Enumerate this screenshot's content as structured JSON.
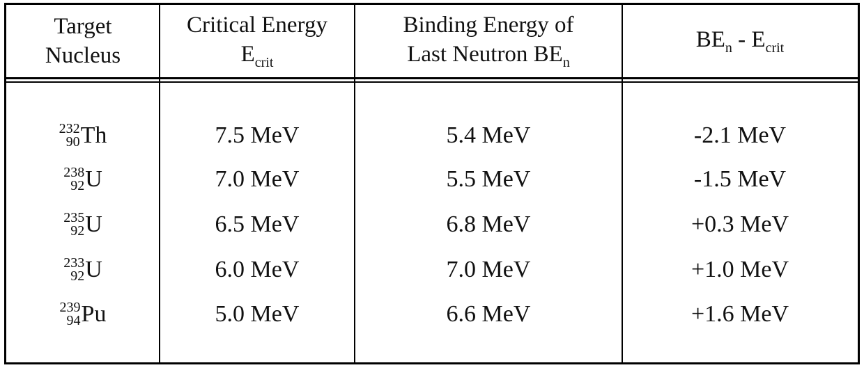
{
  "table": {
    "header": [
      {
        "line1": "Target",
        "line2": "Nucleus"
      },
      {
        "line1": "Critical Energy",
        "line2": "E",
        "line2_sub": "crit"
      },
      {
        "line1": "Binding Energy of",
        "line2": "Last Neutron BE",
        "line2_sub": "n"
      },
      {
        "symbol1": "BE",
        "sub1": "n",
        "symbol2": " - E",
        "sub2": "crit"
      }
    ],
    "rows": [
      [
        {
          "mass": "232",
          "atomic": "90",
          "symbol": "Th"
        },
        "7.5 MeV",
        "5.4 MeV",
        "-2.1 MeV"
      ],
      [
        {
          "mass": "238",
          "atomic": "92",
          "symbol": "U"
        },
        "7.0 MeV",
        "5.5 MeV",
        "-1.5 MeV"
      ],
      [
        {
          "mass": "235",
          "atomic": "92",
          "symbol": "U"
        },
        "6.5 MeV",
        "6.8 MeV",
        "+0.3 MeV"
      ],
      [
        {
          "mass": "233",
          "atomic": "92",
          "symbol": "U"
        },
        "6.0 MeV",
        "7.0 MeV",
        "+1.0 MeV"
      ],
      [
        {
          "mass": "239",
          "atomic": "94",
          "symbol": "Pu"
        },
        "5.0 MeV",
        "6.6 MeV",
        "+1.6 MeV"
      ]
    ]
  }
}
